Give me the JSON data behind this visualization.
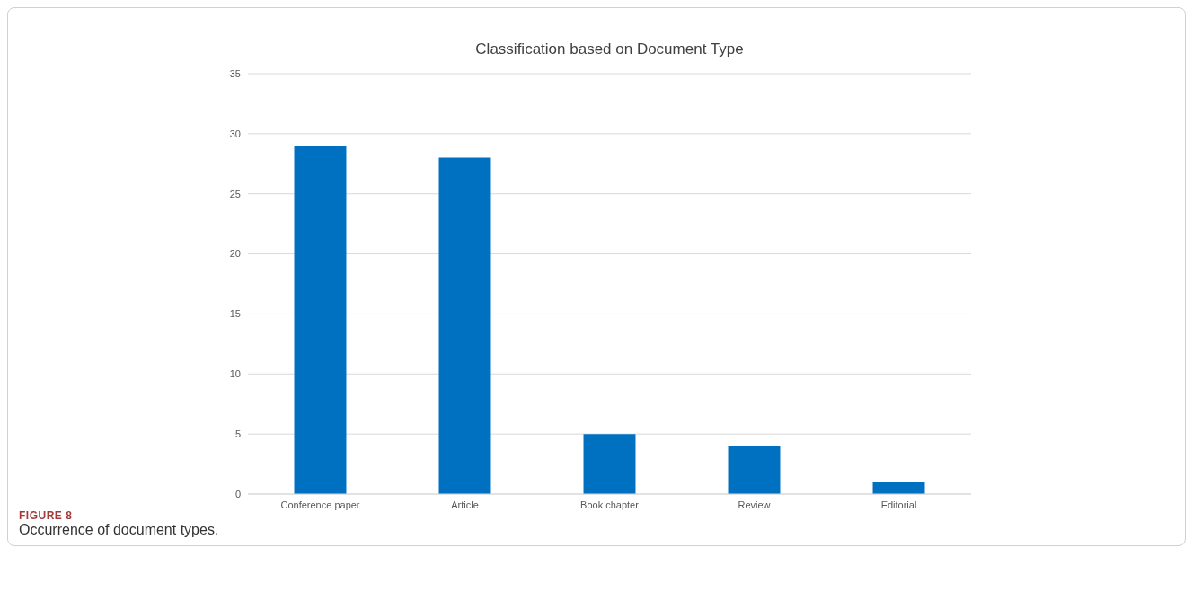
{
  "chart_data": {
    "type": "bar",
    "title": "Classification based on Document Type",
    "categories": [
      "Conference paper",
      "Article",
      "Book chapter",
      "Review",
      "Editorial"
    ],
    "values": [
      29,
      28,
      5,
      4,
      1
    ],
    "color": "#0070c0",
    "ylim": [
      0,
      35
    ],
    "yticks": [
      0,
      5,
      10,
      15,
      20,
      25,
      30,
      35
    ],
    "grid": "y",
    "annotations": [
      "FIGURE 8",
      "Occurrence of document types."
    ]
  }
}
